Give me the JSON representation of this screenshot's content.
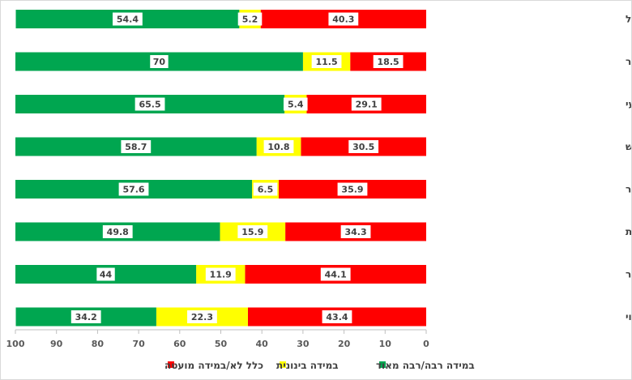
{
  "chart_data": {
    "type": "bar",
    "orientation": "horizontal",
    "stacked": true,
    "x_axis_reversed": true,
    "xlim": [
      0,
      100
    ],
    "xticks": [
      "100",
      "90",
      "80",
      "70",
      "60",
      "50",
      "40",
      "30",
      "20",
      "10",
      "0"
    ],
    "grid": false,
    "legend_position": "bottom",
    "categories": [
      "אני מרוצה מתוצאות הטיפול",
      "הנציבה הייתה נגישה בזמן סביר",
      "הליך קבלת התלונה היה מקצועי",
      "הליך קבלת התלונה היה רגיש",
      "הסבירו לי את תהליך הבירור",
      "אמליץ למישהו/י אחר/ת באותו מצב לפנות לנציבות",
      "משך הבירור היה סביר",
      "הוצעו לי עזרה וליווי"
    ],
    "series": [
      {
        "name": "כלל לא/במידה מועטה",
        "color": "#ff0000",
        "values": [
          40.3,
          18.5,
          29.1,
          30.5,
          35.9,
          34.3,
          44.1,
          43.4
        ],
        "labels": [
          "40.3",
          "18.5",
          "29.1",
          "30.5",
          "35.9",
          "34.3",
          "44.1",
          "43.4"
        ]
      },
      {
        "name": "במידה בינונית",
        "color": "#ffff00",
        "values": [
          5.2,
          11.5,
          5.4,
          10.8,
          6.5,
          15.9,
          11.9,
          22.3
        ],
        "labels": [
          "5.2",
          "11.5",
          "5.4",
          "10.8",
          "6.5",
          "15.9",
          "11.9",
          "22.3"
        ]
      },
      {
        "name": "במידה רבה/רבה מאוד",
        "color": "#00a650",
        "values": [
          54.4,
          70,
          65.5,
          58.7,
          57.6,
          49.8,
          44,
          34.2
        ],
        "labels": [
          "54.4",
          "70",
          "65.5",
          "58.7",
          "57.6",
          "49.8",
          "44",
          "34.2"
        ]
      }
    ]
  }
}
